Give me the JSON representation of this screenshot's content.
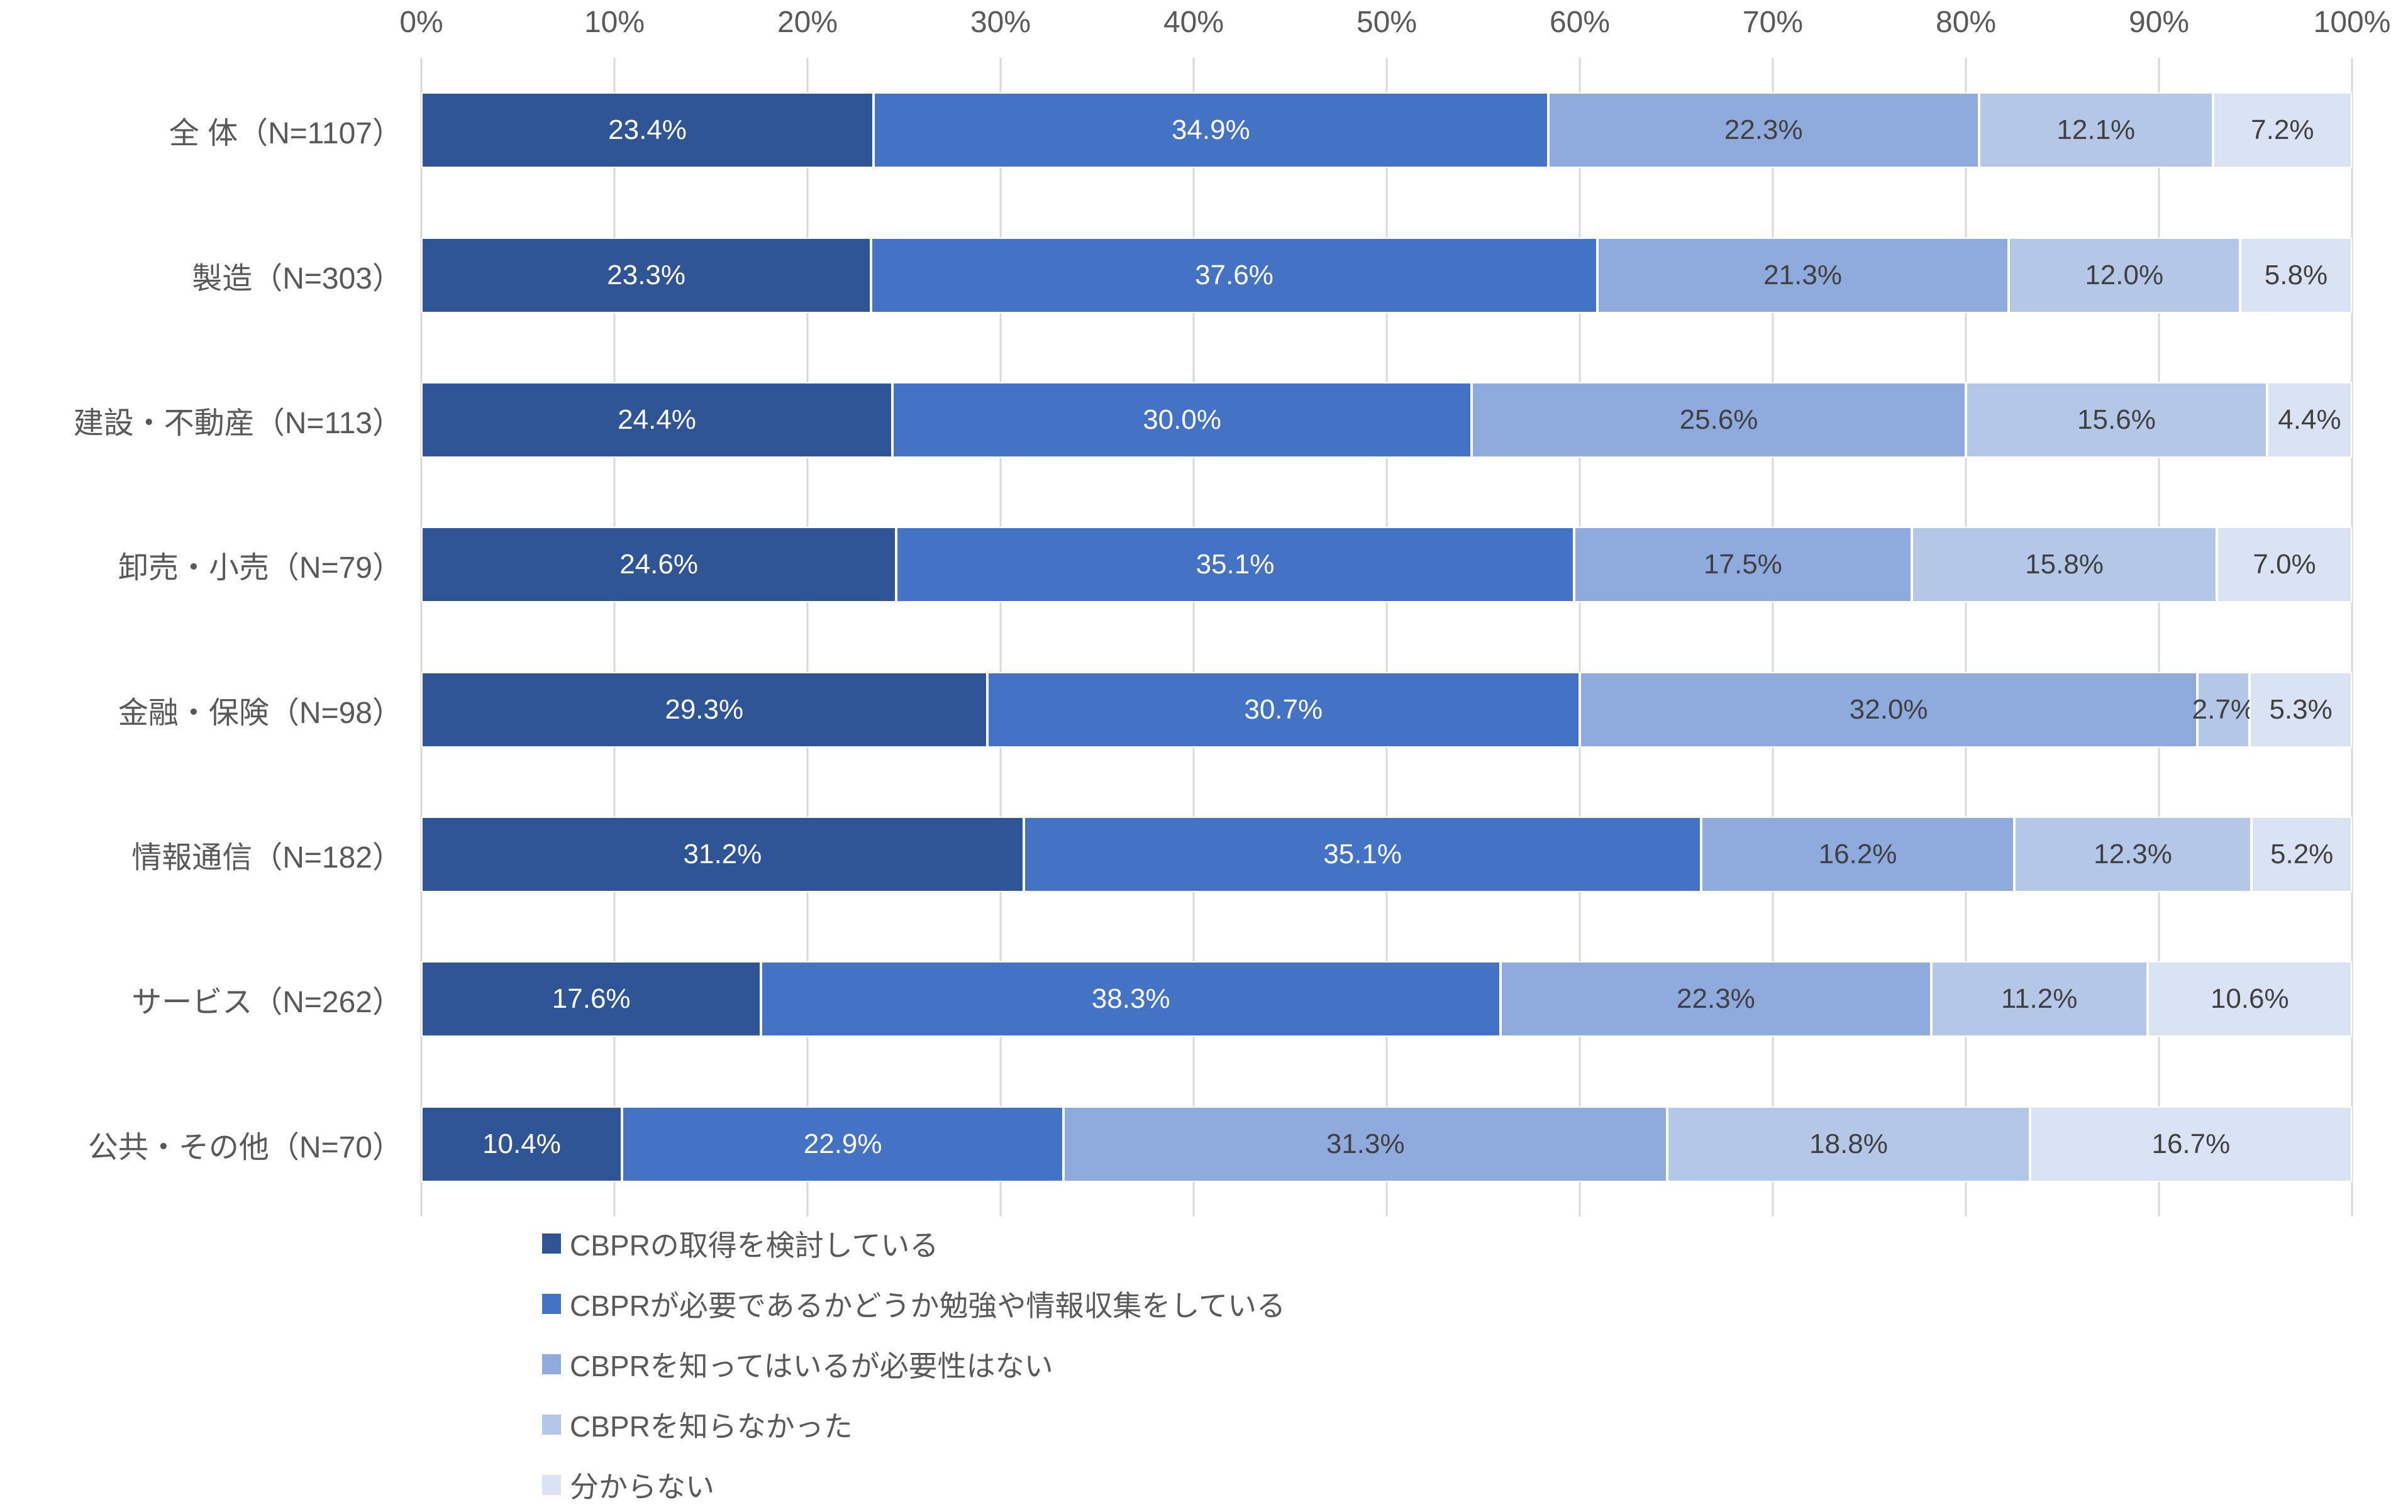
{
  "chart_data": {
    "type": "bar",
    "stacked": true,
    "percent_stacked": true,
    "orientation": "horizontal",
    "title": "",
    "xlabel": "",
    "ylabel": "",
    "grid": true,
    "axis_position": "top",
    "legend_position": "bottom-left",
    "value_format": "0.0%",
    "xlim": [
      0,
      100
    ],
    "x_axis_ticks": [
      "0%",
      "10%",
      "20%",
      "30%",
      "40%",
      "50%",
      "60%",
      "70%",
      "80%",
      "90%",
      "100%"
    ],
    "categories": [
      "全 体（N=1107）",
      "製造（N=303）",
      "建設・不動産（N=113）",
      "卸売・小売（N=79）",
      "金融・保険（N=98）",
      "情報通信（N=182）",
      "サービス（N=262）",
      "公共・その他（N=70）"
    ],
    "series": [
      {
        "name": "CBPRの取得を検討している",
        "color": "#2F5597",
        "label_color": "#FFFFFF",
        "values": [
          23.4,
          23.3,
          24.4,
          24.6,
          29.3,
          31.2,
          17.6,
          10.4
        ]
      },
      {
        "name": "CBPRが必要であるかどうか勉強や情報収集をしている",
        "color": "#4472C4",
        "label_color": "#FFFFFF",
        "values": [
          34.9,
          37.6,
          30.0,
          35.1,
          30.7,
          35.1,
          38.3,
          22.9
        ]
      },
      {
        "name": "CBPRを知ってはいるが必要性はない",
        "color": "#8FAADC",
        "label_color": "#404040",
        "values": [
          22.3,
          21.3,
          25.6,
          17.5,
          32.0,
          16.2,
          22.3,
          31.3
        ]
      },
      {
        "name": "CBPRを知らなかった",
        "color": "#B4C7E7",
        "label_color": "#404040",
        "values": [
          12.1,
          12.0,
          15.6,
          15.8,
          2.7,
          12.3,
          11.2,
          18.8
        ]
      },
      {
        "name": "分からない",
        "color": "#DAE3F3",
        "label_color": "#404040",
        "values": [
          7.2,
          5.8,
          4.4,
          7.0,
          5.3,
          5.2,
          10.6,
          16.7
        ]
      }
    ],
    "gridline_color": "#D9D9D9",
    "axis_text_color": "#595959",
    "category_text_color": "#595959",
    "legend_text_color": "#595959"
  }
}
